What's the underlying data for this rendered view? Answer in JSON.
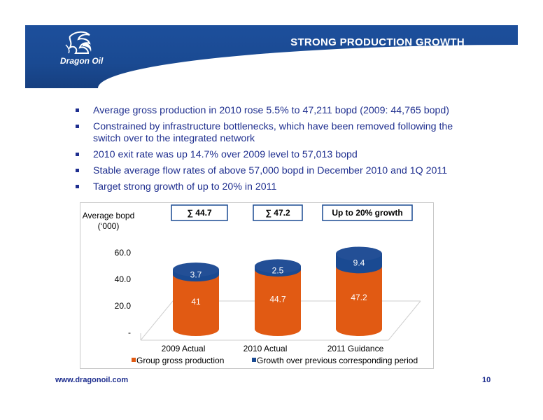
{
  "header": {
    "title": "STRONG PRODUCTION GROWTH",
    "logo_text": "Dragon Oil",
    "brand_color": "#1a4a92"
  },
  "bullets": [
    "Average gross production in 2010 rose 5.5% to 47,211 bopd (2009: 44,765 bopd)",
    "Constrained by infrastructure bottlenecks, which have been removed following the switch over to the integrated network",
    "2010 exit rate was up 14.7% over 2009 level to 57,013 bopd",
    "Stable average flow rates of above 57,000 bopd in December 2010 and 1Q 2011",
    "Target strong growth of up to 20% in 2011"
  ],
  "footer": {
    "url": "www.dragonoil.com",
    "page": "10"
  },
  "chart_data": {
    "type": "bar",
    "stacked": true,
    "style": "3d-cylinder",
    "ylabel": "Average bopd (‘000)",
    "ylabel_line1": "Average bopd",
    "ylabel_line2": "(‘000)",
    "yticks": [
      "60.0",
      "40.0",
      "20.0",
      "-"
    ],
    "ytick_values": [
      60,
      40,
      20,
      0
    ],
    "ylim": [
      0,
      60
    ],
    "categories": [
      "2009 Actual",
      "2010 Actual",
      "2011 Guidance"
    ],
    "series": [
      {
        "name": "Group gross production",
        "values": [
          41,
          44.7,
          47.2
        ],
        "labels": [
          "41",
          "44.7",
          "47.2"
        ],
        "color": "#e15a13"
      },
      {
        "name": "Growth over previous corresponding period",
        "values": [
          3.7,
          2.5,
          9.4
        ],
        "labels": [
          "3.7",
          "2.5",
          "9.4"
        ],
        "color": "#1a4a92"
      }
    ],
    "totals": [
      "∑ 44.7",
      "∑ 47.2",
      "Up to 20% growth"
    ],
    "legend_placement": "bottom",
    "grid": false
  }
}
